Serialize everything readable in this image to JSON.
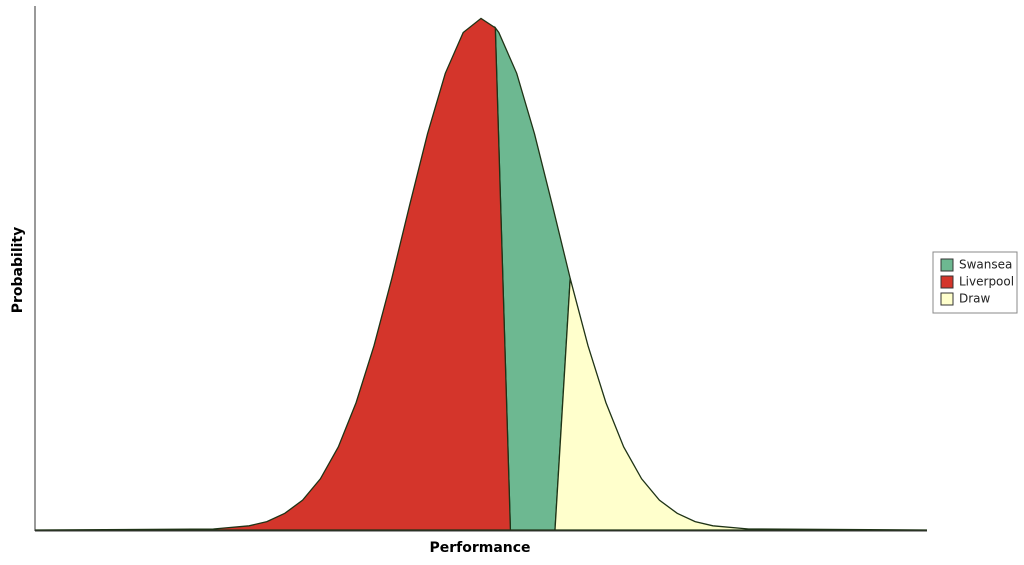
{
  "chart_data": {
    "type": "area",
    "x_label": "Performance",
    "y_label": "Probability",
    "xlim": [
      0,
      100
    ],
    "ylim": [
      0,
      1
    ],
    "legend": "right",
    "series": [
      {
        "name": "Swansea",
        "color": "#6db891",
        "x": [
          51.6,
          52,
          54,
          56,
          58,
          60,
          58.3,
          53.3
        ],
        "values": [
          0.962,
          0.953,
          0.875,
          0.759,
          0.622,
          0.482,
          0,
          0
        ]
      },
      {
        "name": "Liverpool",
        "color": "#d4352b",
        "x": [
          0,
          20,
          24,
          26,
          28,
          30,
          32,
          34,
          36,
          38,
          40,
          42,
          44,
          46,
          48,
          50,
          51.6,
          53.3
        ],
        "values": [
          0,
          0.002,
          0.008,
          0.016,
          0.032,
          0.057,
          0.098,
          0.159,
          0.244,
          0.353,
          0.482,
          0.622,
          0.759,
          0.875,
          0.953,
          0.98,
          0.962,
          0
        ]
      },
      {
        "name": "Draw",
        "color": "#ffffcc",
        "x": [
          60,
          62,
          64,
          66,
          68,
          70,
          72,
          74,
          76,
          80,
          100,
          58.3
        ],
        "values": [
          0.482,
          0.353,
          0.244,
          0.159,
          0.098,
          0.057,
          0.032,
          0.016,
          0.008,
          0.002,
          0,
          0
        ]
      }
    ]
  }
}
